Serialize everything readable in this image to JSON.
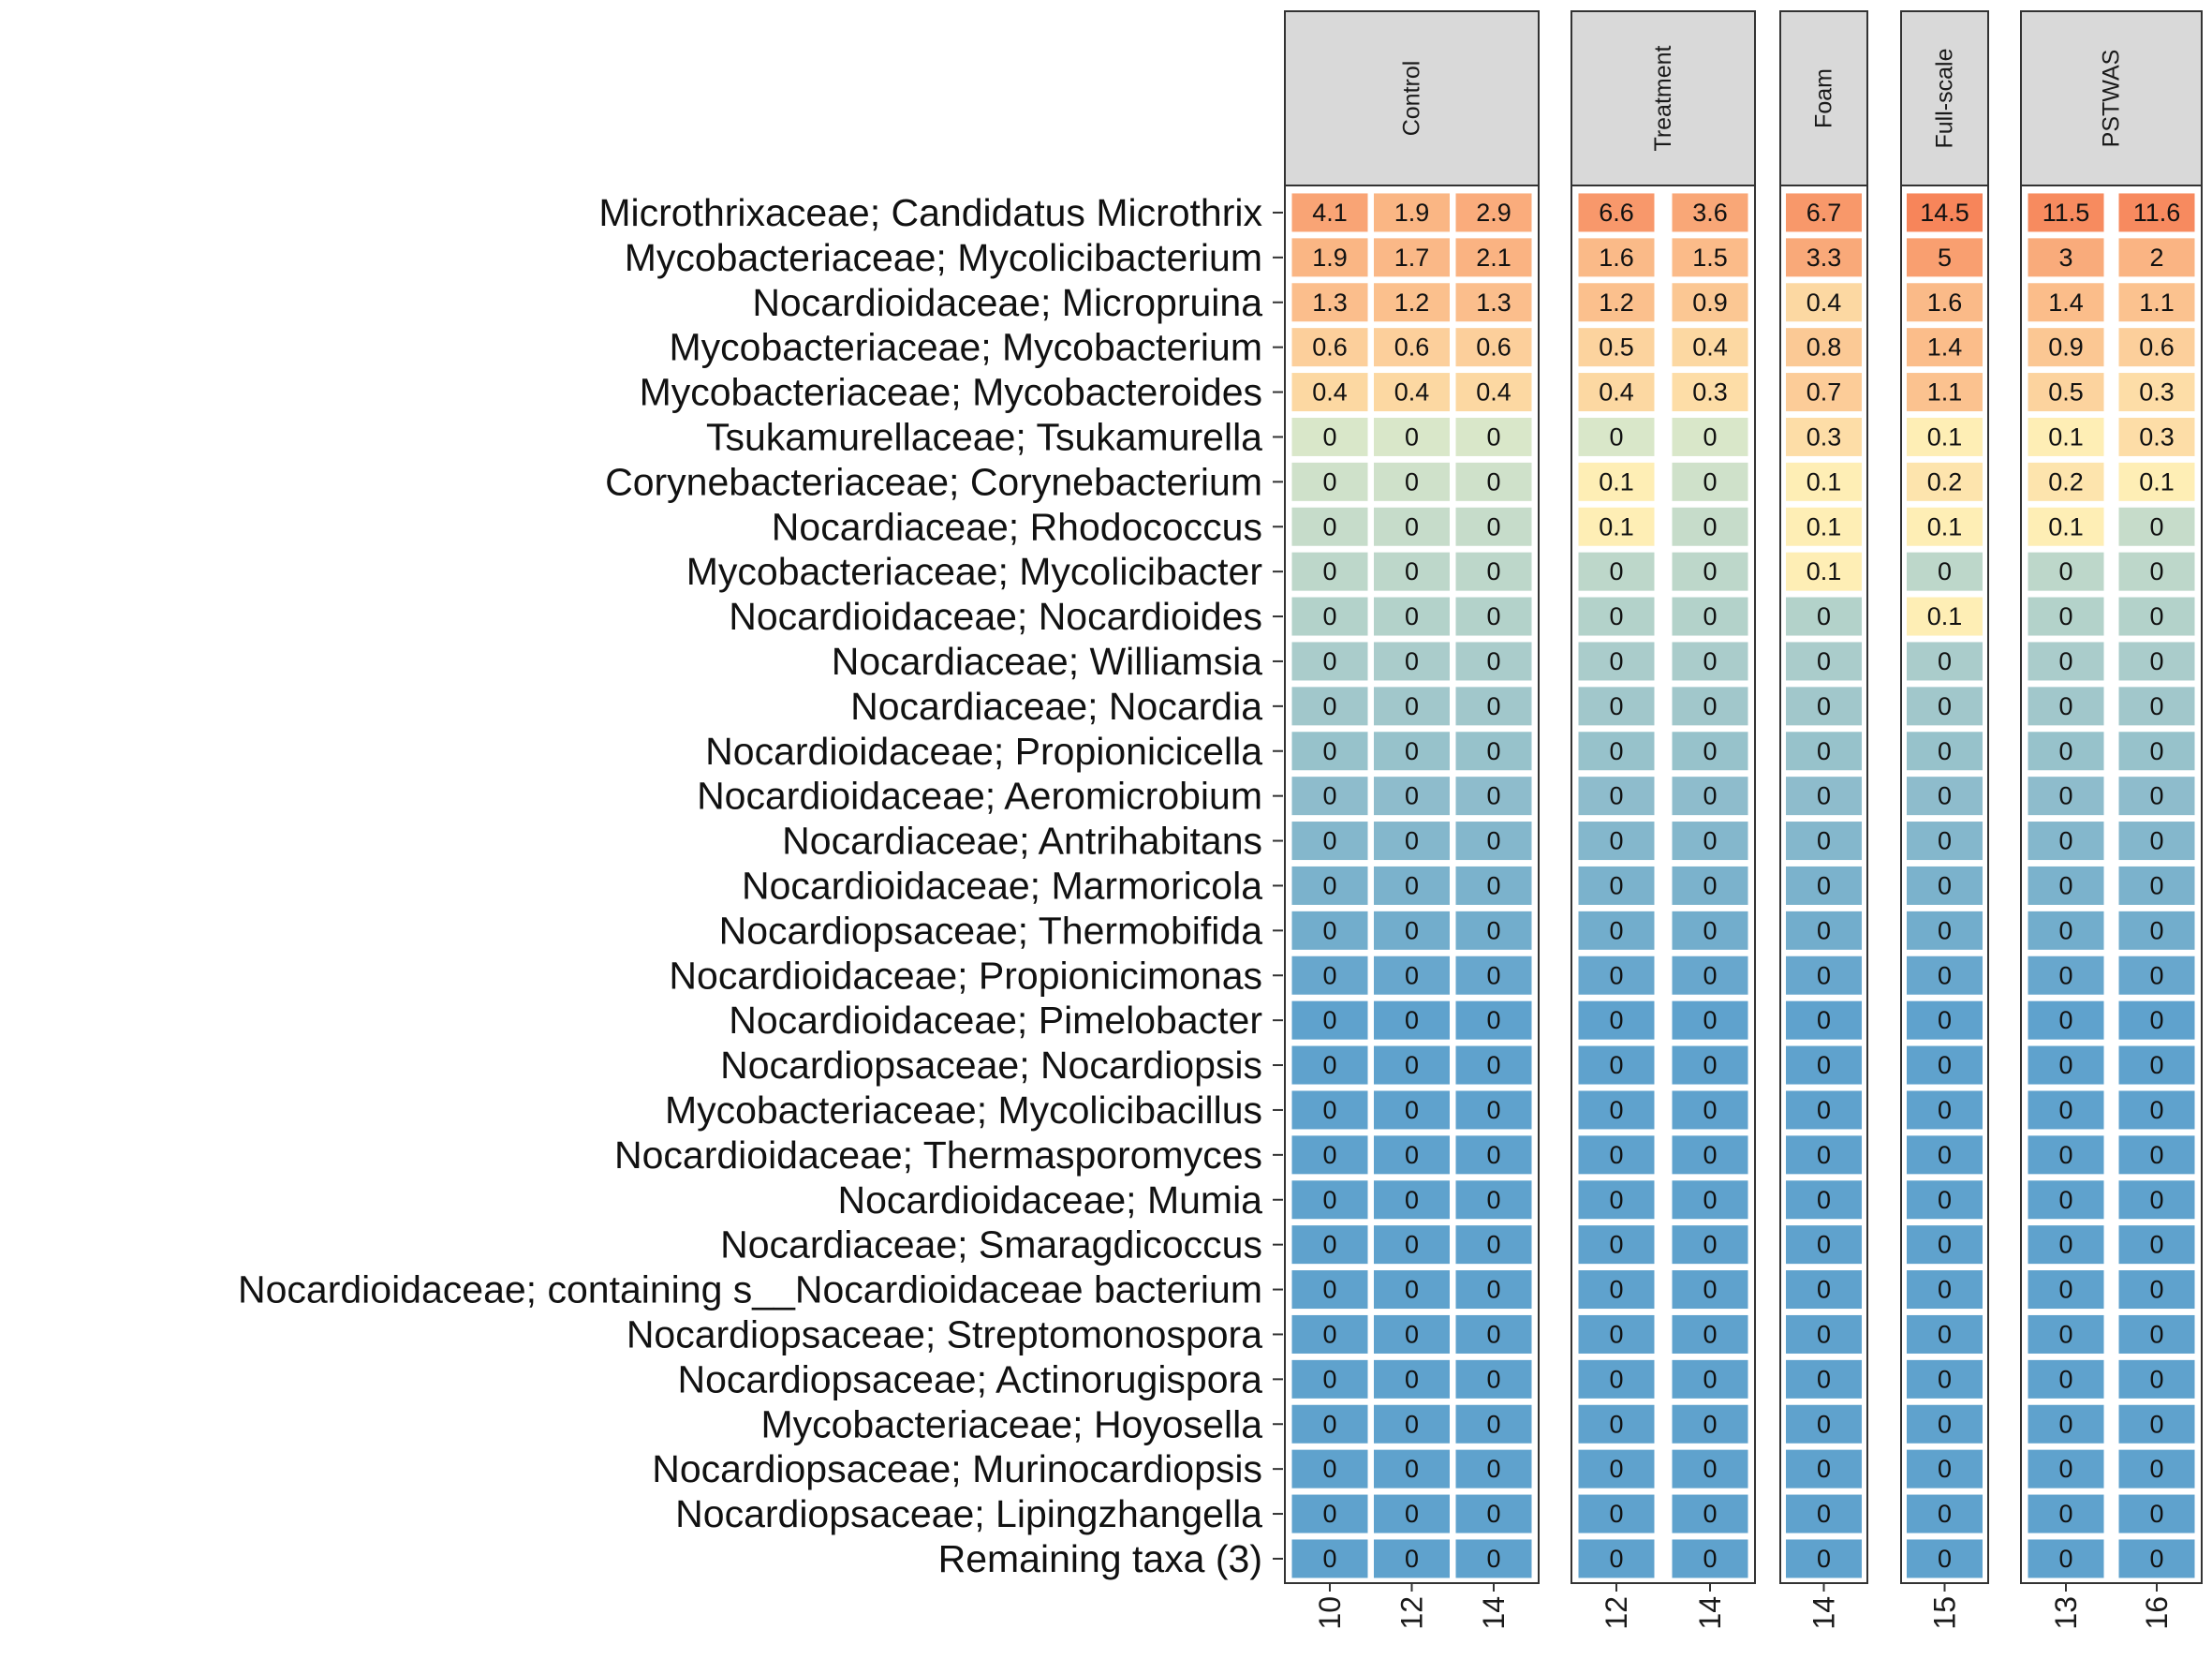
{
  "chart_data": {
    "type": "heatmap",
    "title": "",
    "xlabel": "",
    "ylabel": "",
    "grid": false,
    "legend": "none",
    "panels": [
      {
        "name": "Control",
        "columns": [
          "10",
          "12",
          "14"
        ]
      },
      {
        "name": "Treatment",
        "columns": [
          "12",
          "14"
        ]
      },
      {
        "name": "Foam",
        "columns": [
          "14"
        ]
      },
      {
        "name": "Full-scale",
        "columns": [
          "15"
        ]
      },
      {
        "name": "PSTWAS",
        "columns": [
          "13",
          "16"
        ]
      }
    ],
    "rows": [
      {
        "label": "Microthrixaceae; Candidatus Microthrix",
        "values": [
          [
            4.1,
            1.9,
            2.9
          ],
          [
            6.6,
            3.6
          ],
          [
            6.7
          ],
          [
            14.5
          ],
          [
            11.5,
            11.6
          ]
        ]
      },
      {
        "label": "Mycobacteriaceae; Mycolicibacterium",
        "values": [
          [
            1.9,
            1.7,
            2.1
          ],
          [
            1.6,
            1.5
          ],
          [
            3.3
          ],
          [
            5
          ],
          [
            3,
            2
          ]
        ]
      },
      {
        "label": "Nocardioidaceae; Micropruina",
        "values": [
          [
            1.3,
            1.2,
            1.3
          ],
          [
            1.2,
            0.9
          ],
          [
            0.4
          ],
          [
            1.6
          ],
          [
            1.4,
            1.1
          ]
        ]
      },
      {
        "label": "Mycobacteriaceae; Mycobacterium",
        "values": [
          [
            0.6,
            0.6,
            0.6
          ],
          [
            0.5,
            0.4
          ],
          [
            0.8
          ],
          [
            1.4
          ],
          [
            0.9,
            0.6
          ]
        ]
      },
      {
        "label": "Mycobacteriaceae; Mycobacteroides",
        "values": [
          [
            0.4,
            0.4,
            0.4
          ],
          [
            0.4,
            0.3
          ],
          [
            0.7
          ],
          [
            1.1
          ],
          [
            0.5,
            0.3
          ]
        ]
      },
      {
        "label": "Tsukamurellaceae; Tsukamurella",
        "values": [
          [
            0,
            0,
            0
          ],
          [
            0,
            0
          ],
          [
            0.3
          ],
          [
            0.1
          ],
          [
            0.1,
            0.3
          ]
        ]
      },
      {
        "label": "Corynebacteriaceae; Corynebacterium",
        "values": [
          [
            0,
            0,
            0
          ],
          [
            0.1,
            0
          ],
          [
            0.1
          ],
          [
            0.2
          ],
          [
            0.2,
            0.1
          ]
        ]
      },
      {
        "label": "Nocardiaceae; Rhodococcus",
        "values": [
          [
            0,
            0,
            0
          ],
          [
            0.1,
            0
          ],
          [
            0.1
          ],
          [
            0.1
          ],
          [
            0.1,
            0
          ]
        ]
      },
      {
        "label": "Mycobacteriaceae; Mycolicibacter",
        "values": [
          [
            0,
            0,
            0
          ],
          [
            0,
            0
          ],
          [
            0.1
          ],
          [
            0
          ],
          [
            0,
            0
          ]
        ]
      },
      {
        "label": "Nocardioidaceae; Nocardioides",
        "values": [
          [
            0,
            0,
            0
          ],
          [
            0,
            0
          ],
          [
            0
          ],
          [
            0.1
          ],
          [
            0,
            0
          ]
        ]
      },
      {
        "label": "Nocardiaceae; Williamsia",
        "values": [
          [
            0,
            0,
            0
          ],
          [
            0,
            0
          ],
          [
            0
          ],
          [
            0
          ],
          [
            0,
            0
          ]
        ]
      },
      {
        "label": "Nocardiaceae; Nocardia",
        "values": [
          [
            0,
            0,
            0
          ],
          [
            0,
            0
          ],
          [
            0
          ],
          [
            0
          ],
          [
            0,
            0
          ]
        ]
      },
      {
        "label": "Nocardioidaceae; Propionicicella",
        "values": [
          [
            0,
            0,
            0
          ],
          [
            0,
            0
          ],
          [
            0
          ],
          [
            0
          ],
          [
            0,
            0
          ]
        ]
      },
      {
        "label": "Nocardioidaceae; Aeromicrobium",
        "values": [
          [
            0,
            0,
            0
          ],
          [
            0,
            0
          ],
          [
            0
          ],
          [
            0
          ],
          [
            0,
            0
          ]
        ]
      },
      {
        "label": "Nocardiaceae; Antrihabitans",
        "values": [
          [
            0,
            0,
            0
          ],
          [
            0,
            0
          ],
          [
            0
          ],
          [
            0
          ],
          [
            0,
            0
          ]
        ]
      },
      {
        "label": "Nocardioidaceae; Marmoricola",
        "values": [
          [
            0,
            0,
            0
          ],
          [
            0,
            0
          ],
          [
            0
          ],
          [
            0
          ],
          [
            0,
            0
          ]
        ]
      },
      {
        "label": "Nocardiopsaceae; Thermobifida",
        "values": [
          [
            0,
            0,
            0
          ],
          [
            0,
            0
          ],
          [
            0
          ],
          [
            0
          ],
          [
            0,
            0
          ]
        ]
      },
      {
        "label": "Nocardioidaceae; Propionicimonas",
        "values": [
          [
            0,
            0,
            0
          ],
          [
            0,
            0
          ],
          [
            0
          ],
          [
            0
          ],
          [
            0,
            0
          ]
        ]
      },
      {
        "label": "Nocardioidaceae; Pimelobacter",
        "values": [
          [
            0,
            0,
            0
          ],
          [
            0,
            0
          ],
          [
            0
          ],
          [
            0
          ],
          [
            0,
            0
          ]
        ]
      },
      {
        "label": "Nocardiopsaceae; Nocardiopsis",
        "values": [
          [
            0,
            0,
            0
          ],
          [
            0,
            0
          ],
          [
            0
          ],
          [
            0
          ],
          [
            0,
            0
          ]
        ]
      },
      {
        "label": "Mycobacteriaceae; Mycolicibacillus",
        "values": [
          [
            0,
            0,
            0
          ],
          [
            0,
            0
          ],
          [
            0
          ],
          [
            0
          ],
          [
            0,
            0
          ]
        ]
      },
      {
        "label": "Nocardioidaceae; Thermasporomyces",
        "values": [
          [
            0,
            0,
            0
          ],
          [
            0,
            0
          ],
          [
            0
          ],
          [
            0
          ],
          [
            0,
            0
          ]
        ]
      },
      {
        "label": "Nocardioidaceae; Mumia",
        "values": [
          [
            0,
            0,
            0
          ],
          [
            0,
            0
          ],
          [
            0
          ],
          [
            0
          ],
          [
            0,
            0
          ]
        ]
      },
      {
        "label": "Nocardiaceae; Smaragdicoccus",
        "values": [
          [
            0,
            0,
            0
          ],
          [
            0,
            0
          ],
          [
            0
          ],
          [
            0
          ],
          [
            0,
            0
          ]
        ]
      },
      {
        "label": "Nocardioidaceae; containing s__Nocardioidaceae bacterium",
        "values": [
          [
            0,
            0,
            0
          ],
          [
            0,
            0
          ],
          [
            0
          ],
          [
            0
          ],
          [
            0,
            0
          ]
        ]
      },
      {
        "label": "Nocardiopsaceae; Streptomonospora",
        "values": [
          [
            0,
            0,
            0
          ],
          [
            0,
            0
          ],
          [
            0
          ],
          [
            0
          ],
          [
            0,
            0
          ]
        ]
      },
      {
        "label": "Nocardiopsaceae; Actinorugispora",
        "values": [
          [
            0,
            0,
            0
          ],
          [
            0,
            0
          ],
          [
            0
          ],
          [
            0
          ],
          [
            0,
            0
          ]
        ]
      },
      {
        "label": "Mycobacteriaceae; Hoyosella",
        "values": [
          [
            0,
            0,
            0
          ],
          [
            0,
            0
          ],
          [
            0
          ],
          [
            0
          ],
          [
            0,
            0
          ]
        ]
      },
      {
        "label": "Nocardiopsaceae; Murinocardiopsis",
        "values": [
          [
            0,
            0,
            0
          ],
          [
            0,
            0
          ],
          [
            0
          ],
          [
            0
          ],
          [
            0,
            0
          ]
        ]
      },
      {
        "label": "Nocardiopsaceae; Lipingzhangella",
        "values": [
          [
            0,
            0,
            0
          ],
          [
            0,
            0
          ],
          [
            0
          ],
          [
            0
          ],
          [
            0,
            0
          ]
        ]
      },
      {
        "label": "Remaining taxa (3)",
        "values": [
          [
            0,
            0,
            0
          ],
          [
            0,
            0
          ],
          [
            0
          ],
          [
            0
          ],
          [
            0,
            0
          ]
        ]
      }
    ],
    "color_scale": {
      "low": "#5fa2cd",
      "mid": "#ffffc4",
      "high": "#f7855a",
      "strip_fill": "#d9d9d9",
      "cell_border": "#ffffff"
    }
  }
}
